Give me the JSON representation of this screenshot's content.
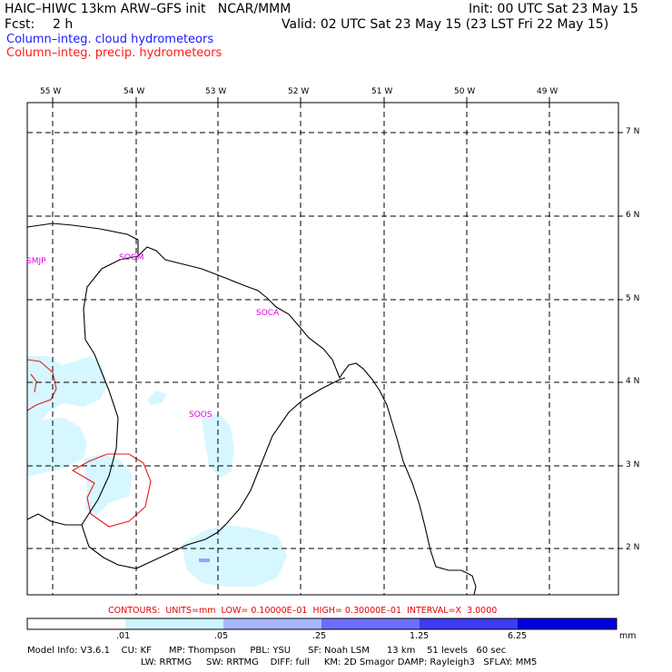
{
  "header": {
    "model": "HAIC–HIWC 13km ARW–GFS init   NCAR/MMM",
    "init": "Init: 00 UTC Sat 23 May 15",
    "fcst_label": "Fcst:",
    "fcst_value": "2 h",
    "valid": "Valid: 02 UTC Sat 23 May 15 (23 LST Fri 22 May 15)"
  },
  "legend": {
    "cloud": "Column–integ. cloud hydrometeors",
    "precip": "Column–integ. precip. hydrometeors",
    "cloud_color": "#1a1aff",
    "precip_color": "#ff1a1a"
  },
  "map": {
    "longitudes": [
      "55 W",
      "54 W",
      "53 W",
      "52 W",
      "51 W",
      "50 W",
      "49 W"
    ],
    "latitudes": [
      "7 N",
      "6 N",
      "5 N",
      "4 N",
      "3 N",
      "2 N"
    ],
    "stations": [
      "SMJP",
      "SOGM",
      "SOCA",
      "SOOS"
    ],
    "station_color": "#e600e6",
    "coastline_color": "#000000",
    "gridline_style": "dashed"
  },
  "contours": {
    "text": "CONTOURS:  UNITS=mm  LOW= 0.10000E–01  HIGH= 0.30000E–01  INTERVAL=X  3.0000"
  },
  "colorbar": {
    "labels": [
      ".01",
      ".05",
      ".25",
      "1.25",
      "6.25"
    ],
    "unit": "mm",
    "colors": [
      "#ffffff",
      "#ccf5ff",
      "#a8b8ff",
      "#6e6eff",
      "#3c3cf0",
      "#0000e0"
    ]
  },
  "footer": {
    "line1": "Model Info: V3.6.1    CU: KF      MP: Thompson     PBL: YSU      SF: Noah LSM      13 km    51 levels   60 sec",
    "line2": "LW: RRTMG     SW: RRTMG    DIFF: full     KM: 2D Smagor DAMP: Rayleigh3   SFLAY: MM5"
  }
}
